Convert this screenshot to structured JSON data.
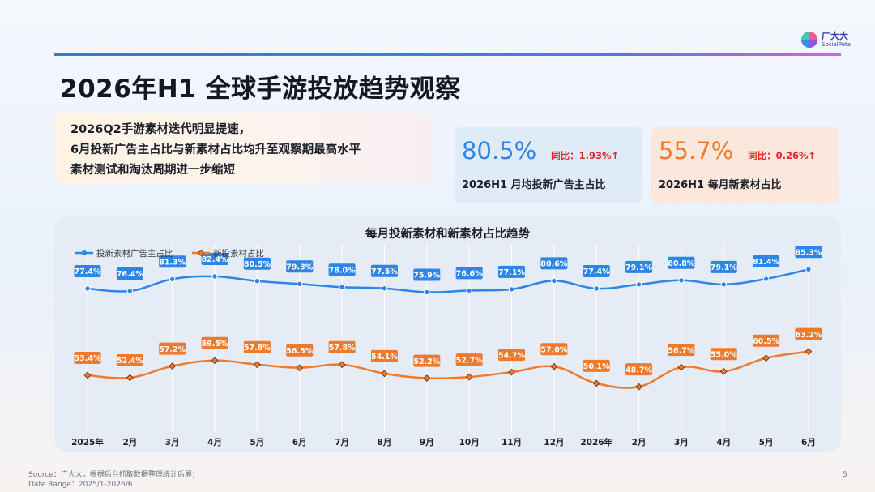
{
  "brand": {
    "name_cn": "广大大",
    "name_en": "SocialPeta"
  },
  "title": "2026年H1 全球手游投放趋势观察",
  "summary": {
    "lines": [
      "2026Q2手游素材迭代明显提速，",
      "6月投新广告主占比与新素材占比均升至观察期最高水平",
      "素材测试和淘汰周期进一步缩短"
    ]
  },
  "kpis": [
    {
      "value": "80.5%",
      "yoy": "同比：1.93%↑",
      "label": "2026H1 月均投新广告主占比",
      "color": "#2d86e7"
    },
    {
      "value": "55.7%",
      "yoy": "同比：0.26%↑",
      "label": "2026H1 每月新素材占比",
      "color": "#f07a2c"
    }
  ],
  "chart_data": {
    "type": "line",
    "title": "每月投新素材和新素材占比趋势",
    "categories": [
      "2025年",
      "2月",
      "3月",
      "4月",
      "5月",
      "6月",
      "7月",
      "8月",
      "9月",
      "10月",
      "11月",
      "12月",
      "2026年",
      "2月",
      "3月",
      "4月",
      "5月",
      "6月"
    ],
    "series": [
      {
        "name": "投新素材广告主占比",
        "color": "#2d86e7",
        "marker": "circle",
        "values": [
          77.4,
          76.4,
          81.3,
          82.4,
          80.5,
          79.3,
          78.0,
          77.5,
          75.9,
          76.6,
          77.1,
          80.6,
          77.4,
          79.1,
          80.8,
          79.1,
          81.4,
          85.3
        ],
        "labels": [
          "77.4%",
          "76.4%",
          "81.3%",
          "82.4%",
          "80.5%",
          "79.3%",
          "78.0%",
          "77.5%",
          "75.9%",
          "76.6%",
          "77.1%",
          "80.6%",
          "77.4%",
          "79.1%",
          "80.8%",
          "79.1%",
          "81.4%",
          "85.3%"
        ]
      },
      {
        "name": "新投素材占比",
        "color": "#f07a2c",
        "marker": "diamond",
        "values": [
          53.4,
          52.4,
          57.2,
          59.5,
          57.8,
          56.5,
          57.8,
          54.1,
          52.2,
          52.7,
          54.7,
          57.0,
          50.1,
          48.7,
          56.7,
          55.0,
          60.5,
          63.2
        ],
        "labels": [
          "53.4%",
          "52.4%",
          "57.2%",
          "59.5%",
          "57.8%",
          "56.5%",
          "57.8%",
          "54.1%",
          "52.2%",
          "52.7%",
          "54.7%",
          "57.0%",
          "50.1%",
          "48.7%",
          "56.7%",
          "55.0%",
          "60.5%",
          "63.2%"
        ]
      }
    ],
    "legend_position": "top-left",
    "grid": "vertical"
  },
  "footer": {
    "source": "Source：广大大，根据后台抓取数据整理统计后展；",
    "range": "Date Range：2025/1-2026/6"
  },
  "page_number": "5"
}
